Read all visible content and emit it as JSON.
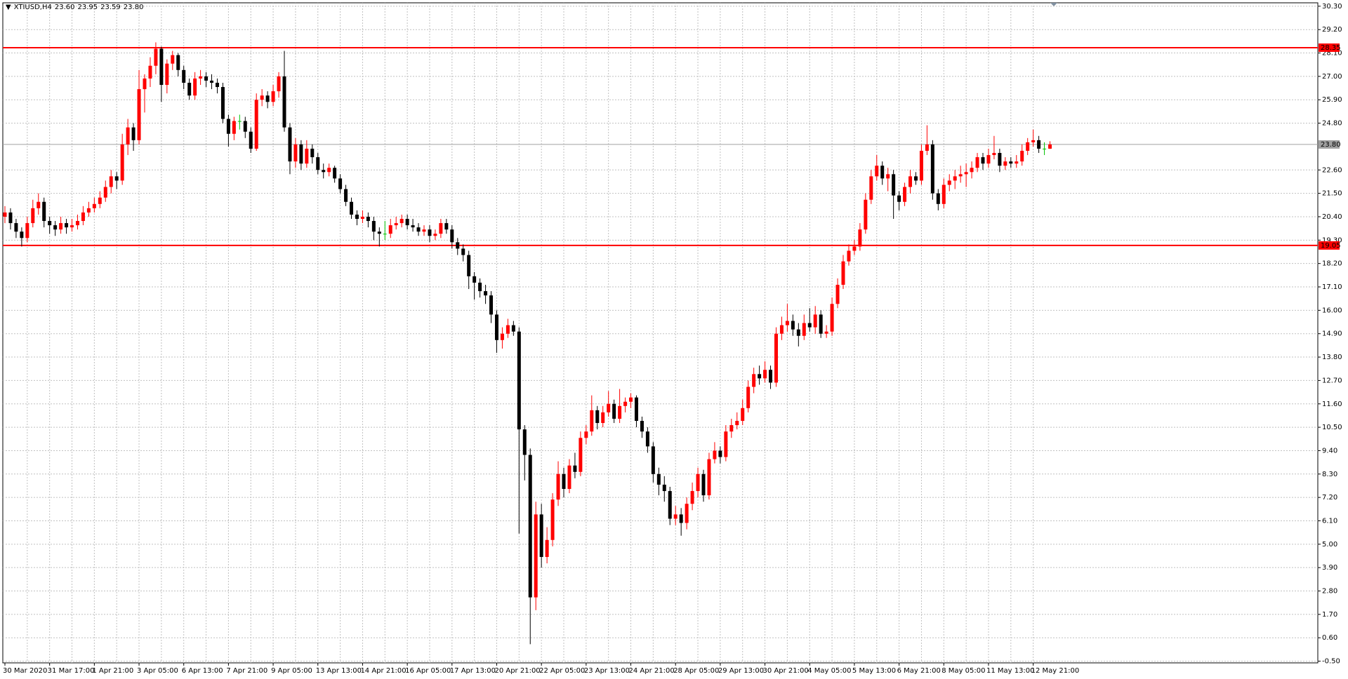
{
  "chart_data": {
    "type": "candlestick",
    "title": "XTIUSD,H4",
    "last_labels": [
      "23.60",
      "23.95",
      "23.59",
      "23.80"
    ],
    "up_color": "#ff0000",
    "down_color": "#000000",
    "doji_color": "#00c000",
    "grid": true,
    "ylim": [
      -0.58,
      30.46
    ],
    "yticks": [
      {
        "value": 30.3,
        "label": "30.30"
      },
      {
        "value": 29.2,
        "label": "29.20"
      },
      {
        "value": 28.1,
        "label": "28.10"
      },
      {
        "value": 27.0,
        "label": "27.00"
      },
      {
        "value": 25.9,
        "label": "25.90"
      },
      {
        "value": 24.8,
        "label": "24.80"
      },
      {
        "value": 22.6,
        "label": "22.60"
      },
      {
        "value": 21.5,
        "label": "21.50"
      },
      {
        "value": 20.4,
        "label": "20.40"
      },
      {
        "value": 19.3,
        "label": "19.30"
      },
      {
        "value": 18.2,
        "label": "18.20"
      },
      {
        "value": 17.1,
        "label": "17.10"
      },
      {
        "value": 16.0,
        "label": "16.00"
      },
      {
        "value": 14.9,
        "label": "14.90"
      },
      {
        "value": 13.8,
        "label": "13.80"
      },
      {
        "value": 12.7,
        "label": "12.70"
      },
      {
        "value": 11.6,
        "label": "11.60"
      },
      {
        "value": 10.5,
        "label": "10.50"
      },
      {
        "value": 9.4,
        "label": "9.40"
      },
      {
        "value": 8.3,
        "label": "8.30"
      },
      {
        "value": 7.2,
        "label": "7.20"
      },
      {
        "value": 6.1,
        "label": "6.10"
      },
      {
        "value": 5.0,
        "label": "5.00"
      },
      {
        "value": 3.9,
        "label": "3.90"
      },
      {
        "value": 2.8,
        "label": "2.80"
      },
      {
        "value": 1.7,
        "label": "1.70"
      },
      {
        "value": 0.6,
        "label": "0.60"
      },
      {
        "value": -0.5,
        "label": "-0.50"
      }
    ],
    "hlines": [
      {
        "value": 28.35,
        "label": "28.35",
        "color": "#ff0000"
      },
      {
        "value": 19.05,
        "label": "19.05",
        "color": "#ff0000"
      }
    ],
    "bid": {
      "value": 23.8,
      "label": "23.80",
      "color": "#a0a0a0"
    },
    "categories": [
      "30 Mar 2020",
      null,
      null,
      null,
      null,
      null,
      null,
      null,
      "31 Mar 17:00",
      null,
      null,
      null,
      null,
      null,
      null,
      null,
      "1 Apr 21:00",
      null,
      null,
      null,
      null,
      null,
      null,
      null,
      "3 Apr 05:00",
      null,
      null,
      null,
      null,
      null,
      null,
      null,
      "6 Apr 13:00",
      null,
      null,
      null,
      null,
      null,
      null,
      null,
      "7 Apr 21:00",
      null,
      null,
      null,
      null,
      null,
      null,
      null,
      "9 Apr 05:00",
      null,
      null,
      null,
      null,
      null,
      null,
      null,
      "13 Apr 13:00",
      null,
      null,
      null,
      null,
      null,
      null,
      null,
      "14 Apr 21:00",
      null,
      null,
      null,
      null,
      null,
      null,
      null,
      "16 Apr 05:00",
      null,
      null,
      null,
      null,
      null,
      null,
      null,
      "17 Apr 13:00",
      null,
      null,
      null,
      null,
      null,
      null,
      null,
      "20 Apr 21:00",
      null,
      null,
      null,
      null,
      null,
      null,
      null,
      "22 Apr 05:00",
      null,
      null,
      null,
      null,
      null,
      null,
      null,
      "23 Apr 13:00",
      null,
      null,
      null,
      null,
      null,
      null,
      null,
      "24 Apr 21:00",
      null,
      null,
      null,
      null,
      null,
      null,
      null,
      "28 Apr 05:00",
      null,
      null,
      null,
      null,
      null,
      null,
      null,
      "29 Apr 13:00",
      null,
      null,
      null,
      null,
      null,
      null,
      null,
      "30 Apr 21:00",
      null,
      null,
      null,
      null,
      null,
      null,
      null,
      "4 May 05:00",
      null,
      null,
      null,
      null,
      null,
      null,
      null,
      "5 May 13:00",
      null,
      null,
      null,
      null,
      null,
      null,
      null,
      "6 May 21:00",
      null,
      null,
      null,
      null,
      null,
      null,
      null,
      "8 May 05:00",
      null,
      null,
      null,
      null,
      null,
      null,
      null,
      "11 May 13:00",
      null,
      null,
      null,
      null,
      null,
      null,
      null,
      "12 May 21:00",
      null,
      null,
      null
    ],
    "candles": [
      [
        20.4,
        20.9,
        20.1,
        20.6
      ],
      [
        20.6,
        20.8,
        19.8,
        20.1
      ],
      [
        20.1,
        20.3,
        19.4,
        19.7
      ],
      [
        19.7,
        19.9,
        19.0,
        19.4
      ],
      [
        19.4,
        20.4,
        19.2,
        20.1
      ],
      [
        20.1,
        21.2,
        19.9,
        20.8
      ],
      [
        20.8,
        21.5,
        20.5,
        21.1
      ],
      [
        21.1,
        21.3,
        19.9,
        20.2
      ],
      [
        20.2,
        20.4,
        19.6,
        20.0
      ],
      [
        20.0,
        20.2,
        19.5,
        19.8
      ],
      [
        19.8,
        20.4,
        19.6,
        20.1
      ],
      [
        20.1,
        20.3,
        19.6,
        19.9
      ],
      [
        19.9,
        20.3,
        19.7,
        20.0
      ],
      [
        20.0,
        20.5,
        19.8,
        20.2
      ],
      [
        20.2,
        20.9,
        20.0,
        20.6
      ],
      [
        20.6,
        21.1,
        20.4,
        20.8
      ],
      [
        20.8,
        21.3,
        20.6,
        21.0
      ],
      [
        21.0,
        21.6,
        20.8,
        21.3
      ],
      [
        21.3,
        22.1,
        21.1,
        21.8
      ],
      [
        21.8,
        22.6,
        21.5,
        22.3
      ],
      [
        22.3,
        22.5,
        21.7,
        22.1
      ],
      [
        22.1,
        24.3,
        21.9,
        23.8
      ],
      [
        23.8,
        25.0,
        23.3,
        24.6
      ],
      [
        24.6,
        24.8,
        23.5,
        24.0
      ],
      [
        24.0,
        27.3,
        23.8,
        26.4
      ],
      [
        26.4,
        27.1,
        25.3,
        26.9
      ],
      [
        26.9,
        27.9,
        26.5,
        27.5
      ],
      [
        27.5,
        28.6,
        27.1,
        28.3
      ],
      [
        28.3,
        28.4,
        25.8,
        26.6
      ],
      [
        26.6,
        27.8,
        26.2,
        27.6
      ],
      [
        27.6,
        28.2,
        27.3,
        28.0
      ],
      [
        28.0,
        28.1,
        27.0,
        27.3
      ],
      [
        27.3,
        27.5,
        26.4,
        26.7
      ],
      [
        26.7,
        26.9,
        25.9,
        26.1
      ],
      [
        26.1,
        27.2,
        25.9,
        26.9
      ],
      [
        26.9,
        27.3,
        26.6,
        27.0
      ],
      [
        27.0,
        27.2,
        26.5,
        26.8
      ],
      [
        26.8,
        27.1,
        26.4,
        26.7
      ],
      [
        26.7,
        26.9,
        26.2,
        26.5
      ],
      [
        26.5,
        26.7,
        24.8,
        25.0
      ],
      [
        25.0,
        25.2,
        23.7,
        24.3
      ],
      [
        24.3,
        25.1,
        24.0,
        24.9
      ],
      [
        24.9,
        25.2,
        24.5,
        24.9
      ],
      [
        24.9,
        25.1,
        24.1,
        24.4
      ],
      [
        24.4,
        24.6,
        23.4,
        23.6
      ],
      [
        23.6,
        26.2,
        23.5,
        25.9
      ],
      [
        25.9,
        26.4,
        25.6,
        26.1
      ],
      [
        26.1,
        26.3,
        25.5,
        25.8
      ],
      [
        25.8,
        26.6,
        25.6,
        26.3
      ],
      [
        26.3,
        27.2,
        26.0,
        27.0
      ],
      [
        27.0,
        28.2,
        24.4,
        24.6
      ],
      [
        24.6,
        24.8,
        22.4,
        23.0
      ],
      [
        23.0,
        24.1,
        22.7,
        23.8
      ],
      [
        23.8,
        24.0,
        22.6,
        22.9
      ],
      [
        22.9,
        24.0,
        22.7,
        23.6
      ],
      [
        23.6,
        23.8,
        22.9,
        23.2
      ],
      [
        23.2,
        23.4,
        22.4,
        22.6
      ],
      [
        22.6,
        22.9,
        22.2,
        22.5
      ],
      [
        22.5,
        22.9,
        22.3,
        22.7
      ],
      [
        22.7,
        22.8,
        22.0,
        22.2
      ],
      [
        22.2,
        22.4,
        21.5,
        21.7
      ],
      [
        21.7,
        21.9,
        20.9,
        21.1
      ],
      [
        21.1,
        21.3,
        20.3,
        20.5
      ],
      [
        20.5,
        20.7,
        20.0,
        20.3
      ],
      [
        20.3,
        20.7,
        20.1,
        20.4
      ],
      [
        20.4,
        20.6,
        19.9,
        20.2
      ],
      [
        20.2,
        20.4,
        19.3,
        19.7
      ],
      [
        19.7,
        19.9,
        19.0,
        19.6
      ],
      [
        19.6,
        20.2,
        19.3,
        19.6
      ],
      [
        19.6,
        20.3,
        19.4,
        20.0
      ],
      [
        20.0,
        20.4,
        19.8,
        20.1
      ],
      [
        20.1,
        20.5,
        19.9,
        20.3
      ],
      [
        20.3,
        20.5,
        19.8,
        20.0
      ],
      [
        20.0,
        20.3,
        19.7,
        19.9
      ],
      [
        19.9,
        20.1,
        19.5,
        19.7
      ],
      [
        19.7,
        20.0,
        19.5,
        19.8
      ],
      [
        19.8,
        20.0,
        19.2,
        19.5
      ],
      [
        19.5,
        19.8,
        19.3,
        19.6
      ],
      [
        19.6,
        20.3,
        19.4,
        20.1
      ],
      [
        20.1,
        20.3,
        19.6,
        19.8
      ],
      [
        19.8,
        20.0,
        18.9,
        19.2
      ],
      [
        19.2,
        19.4,
        18.6,
        18.9
      ],
      [
        18.9,
        19.1,
        18.3,
        18.6
      ],
      [
        18.6,
        18.8,
        17.0,
        17.6
      ],
      [
        17.6,
        17.8,
        16.5,
        17.3
      ],
      [
        17.3,
        17.5,
        16.6,
        16.9
      ],
      [
        16.9,
        17.2,
        16.3,
        16.7
      ],
      [
        16.7,
        16.9,
        15.4,
        15.8
      ],
      [
        15.8,
        16.0,
        14.0,
        14.6
      ],
      [
        14.6,
        15.2,
        14.2,
        14.9
      ],
      [
        14.9,
        15.6,
        14.7,
        15.3
      ],
      [
        15.3,
        15.5,
        14.8,
        15.0
      ],
      [
        15.0,
        15.2,
        5.5,
        10.4
      ],
      [
        10.4,
        10.6,
        8.0,
        9.2
      ],
      [
        9.2,
        9.5,
        0.3,
        2.5
      ],
      [
        2.5,
        7.0,
        1.9,
        6.4
      ],
      [
        6.4,
        6.9,
        3.9,
        4.4
      ],
      [
        4.4,
        5.8,
        4.1,
        5.2
      ],
      [
        5.2,
        7.4,
        4.9,
        7.1
      ],
      [
        7.1,
        8.9,
        6.8,
        8.3
      ],
      [
        8.3,
        8.6,
        7.2,
        7.6
      ],
      [
        7.6,
        9.0,
        7.4,
        8.7
      ],
      [
        8.7,
        9.3,
        8.1,
        8.4
      ],
      [
        8.4,
        10.3,
        8.2,
        10.0
      ],
      [
        10.0,
        10.6,
        9.7,
        10.3
      ],
      [
        10.3,
        12.0,
        10.1,
        11.3
      ],
      [
        11.3,
        11.5,
        10.4,
        10.7
      ],
      [
        10.7,
        11.5,
        10.5,
        11.2
      ],
      [
        11.2,
        12.2,
        11.0,
        11.6
      ],
      [
        11.6,
        11.8,
        10.7,
        10.9
      ],
      [
        10.9,
        12.3,
        10.7,
        11.5
      ],
      [
        11.5,
        11.9,
        11.2,
        11.7
      ],
      [
        11.7,
        12.1,
        11.4,
        11.9
      ],
      [
        11.9,
        12.0,
        10.5,
        10.8
      ],
      [
        10.8,
        11.0,
        10.0,
        10.3
      ],
      [
        10.3,
        10.5,
        9.3,
        9.6
      ],
      [
        9.6,
        9.8,
        7.9,
        8.3
      ],
      [
        8.3,
        8.6,
        7.3,
        7.8
      ],
      [
        7.8,
        8.2,
        7.0,
        7.5
      ],
      [
        7.5,
        7.7,
        5.9,
        6.2
      ],
      [
        6.2,
        6.8,
        5.9,
        6.4
      ],
      [
        6.4,
        6.7,
        5.4,
        6.0
      ],
      [
        6.0,
        7.2,
        5.7,
        6.9
      ],
      [
        6.9,
        7.9,
        6.6,
        7.5
      ],
      [
        7.5,
        8.6,
        7.2,
        8.3
      ],
      [
        8.3,
        8.5,
        7.0,
        7.3
      ],
      [
        7.3,
        9.3,
        7.1,
        9.0
      ],
      [
        9.0,
        9.8,
        8.8,
        9.4
      ],
      [
        9.4,
        9.6,
        8.8,
        9.1
      ],
      [
        9.1,
        10.6,
        8.9,
        10.3
      ],
      [
        10.3,
        10.9,
        10.0,
        10.6
      ],
      [
        10.6,
        11.2,
        10.4,
        10.8
      ],
      [
        10.8,
        11.8,
        10.6,
        11.4
      ],
      [
        11.4,
        12.7,
        11.2,
        12.4
      ],
      [
        12.4,
        13.3,
        12.1,
        13.0
      ],
      [
        13.0,
        13.4,
        12.5,
        12.8
      ],
      [
        12.8,
        13.6,
        12.6,
        13.2
      ],
      [
        13.2,
        13.4,
        12.3,
        12.6
      ],
      [
        12.6,
        15.2,
        12.4,
        14.9
      ],
      [
        14.9,
        15.7,
        14.6,
        15.3
      ],
      [
        15.3,
        16.3,
        15.0,
        15.5
      ],
      [
        15.5,
        15.8,
        14.8,
        15.1
      ],
      [
        15.1,
        15.4,
        14.3,
        14.8
      ],
      [
        14.8,
        15.8,
        14.6,
        15.4
      ],
      [
        15.4,
        16.1,
        15.0,
        15.2
      ],
      [
        15.2,
        16.2,
        14.9,
        15.8
      ],
      [
        15.8,
        16.0,
        14.7,
        14.9
      ],
      [
        14.9,
        15.3,
        14.7,
        15.0
      ],
      [
        15.0,
        16.6,
        14.8,
        16.3
      ],
      [
        16.3,
        17.5,
        16.1,
        17.2
      ],
      [
        17.2,
        18.6,
        17.0,
        18.3
      ],
      [
        18.3,
        19.1,
        18.1,
        18.8
      ],
      [
        18.8,
        19.3,
        18.6,
        19.0
      ],
      [
        19.0,
        20.1,
        18.8,
        19.8
      ],
      [
        19.8,
        21.5,
        19.6,
        21.2
      ],
      [
        21.2,
        22.6,
        21.0,
        22.3
      ],
      [
        22.3,
        23.3,
        22.1,
        22.8
      ],
      [
        22.8,
        23.0,
        21.9,
        22.2
      ],
      [
        22.2,
        22.7,
        21.6,
        22.4
      ],
      [
        22.4,
        22.6,
        20.3,
        21.4
      ],
      [
        21.4,
        21.6,
        20.7,
        21.1
      ],
      [
        21.1,
        22.0,
        20.9,
        21.8
      ],
      [
        21.8,
        22.6,
        21.5,
        22.3
      ],
      [
        22.3,
        22.5,
        21.9,
        22.1
      ],
      [
        22.1,
        23.8,
        21.9,
        23.5
      ],
      [
        23.5,
        24.7,
        23.3,
        23.8
      ],
      [
        23.8,
        24.0,
        21.2,
        21.5
      ],
      [
        21.5,
        21.7,
        20.7,
        21.0
      ],
      [
        21.0,
        22.2,
        20.8,
        21.9
      ],
      [
        21.9,
        22.4,
        21.6,
        22.1
      ],
      [
        22.1,
        22.6,
        21.7,
        22.3
      ],
      [
        22.3,
        22.8,
        22.0,
        22.4
      ],
      [
        22.4,
        22.9,
        21.8,
        22.5
      ],
      [
        22.5,
        23.0,
        22.2,
        22.7
      ],
      [
        22.7,
        23.4,
        22.5,
        23.2
      ],
      [
        23.2,
        23.4,
        22.6,
        22.9
      ],
      [
        22.9,
        23.6,
        22.7,
        23.3
      ],
      [
        23.3,
        24.2,
        23.1,
        23.4
      ],
      [
        23.4,
        23.6,
        22.5,
        22.8
      ],
      [
        22.8,
        23.2,
        22.6,
        23.0
      ],
      [
        23.0,
        23.2,
        22.7,
        22.9
      ],
      [
        22.9,
        23.3,
        22.7,
        23.0
      ],
      [
        23.0,
        23.8,
        22.8,
        23.5
      ],
      [
        23.5,
        24.1,
        23.3,
        23.9
      ],
      [
        23.9,
        24.5,
        23.7,
        24.0
      ],
      [
        24.0,
        24.2,
        23.4,
        23.6
      ],
      [
        23.6,
        23.9,
        23.3,
        23.6
      ],
      [
        23.6,
        23.95,
        23.59,
        23.8
      ]
    ]
  }
}
